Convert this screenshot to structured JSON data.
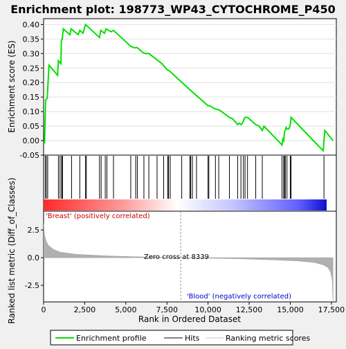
{
  "chart_data": {
    "type": "line",
    "title": "Enrichment plot: 198773_WP43_CYTOCHROME_P450",
    "top_panel": {
      "ylabel": "Enrichment score (ES)",
      "ylim": [
        -0.05,
        0.42
      ],
      "yticks": [
        "-0.05",
        "0.00",
        "0.05",
        "0.10",
        "0.15",
        "0.20",
        "0.25",
        "0.30",
        "0.35",
        "0.40"
      ],
      "ytick_values": [
        -0.05,
        0.0,
        0.05,
        0.1,
        0.15,
        0.2,
        0.25,
        0.3,
        0.35,
        0.4
      ],
      "series_color": "#00e000",
      "es_profile": [
        [
          0,
          0.0
        ],
        [
          60,
          -0.005
        ],
        [
          120,
          0.14
        ],
        [
          220,
          0.145
        ],
        [
          330,
          0.26
        ],
        [
          850,
          0.225
        ],
        [
          900,
          0.275
        ],
        [
          1050,
          0.265
        ],
        [
          1080,
          0.345
        ],
        [
          1130,
          0.35
        ],
        [
          1200,
          0.385
        ],
        [
          1600,
          0.365
        ],
        [
          1680,
          0.385
        ],
        [
          2100,
          0.365
        ],
        [
          2200,
          0.38
        ],
        [
          2400,
          0.37
        ],
        [
          2550,
          0.4
        ],
        [
          3400,
          0.355
        ],
        [
          3480,
          0.38
        ],
        [
          3700,
          0.37
        ],
        [
          3800,
          0.385
        ],
        [
          4100,
          0.375
        ],
        [
          4250,
          0.38
        ],
        [
          5300,
          0.325
        ],
        [
          5500,
          0.32
        ],
        [
          5550,
          0.32
        ],
        [
          5700,
          0.32
        ],
        [
          6000,
          0.305
        ],
        [
          6150,
          0.3
        ],
        [
          6300,
          0.3
        ],
        [
          6400,
          0.3
        ],
        [
          7200,
          0.265
        ],
        [
          7500,
          0.245
        ],
        [
          7650,
          0.24
        ],
        [
          8900,
          0.175
        ],
        [
          9000,
          0.17
        ],
        [
          9100,
          0.165
        ],
        [
          10000,
          0.12
        ],
        [
          10100,
          0.12
        ],
        [
          10400,
          0.11
        ],
        [
          10700,
          0.105
        ],
        [
          11300,
          0.08
        ],
        [
          11500,
          0.075
        ],
        [
          11800,
          0.055
        ],
        [
          11900,
          0.06
        ],
        [
          12000,
          0.055
        ],
        [
          12100,
          0.06
        ],
        [
          12200,
          0.075
        ],
        [
          12250,
          0.08
        ],
        [
          12400,
          0.08
        ],
        [
          12900,
          0.055
        ],
        [
          13100,
          0.05
        ],
        [
          13300,
          0.035
        ],
        [
          13400,
          0.05
        ],
        [
          14500,
          -0.015
        ],
        [
          14550,
          0.005
        ],
        [
          14600,
          0.0
        ],
        [
          14650,
          0.03
        ],
        [
          14700,
          0.035
        ],
        [
          14750,
          0.045
        ],
        [
          14800,
          0.04
        ],
        [
          14900,
          0.04
        ],
        [
          14950,
          0.045
        ],
        [
          15000,
          0.055
        ],
        [
          15050,
          0.08
        ],
        [
          17000,
          -0.035
        ],
        [
          17100,
          0.035
        ],
        [
          17600,
          0.0
        ]
      ]
    },
    "hits": [
      100,
      170,
      250,
      900,
      1000,
      1100,
      1120,
      1150,
      1700,
      2200,
      2550,
      2600,
      3400,
      3500,
      3750,
      3850,
      4250,
      5300,
      5600,
      5700,
      6100,
      6400,
      6900,
      7300,
      7550,
      7600,
      7700,
      8400,
      8900,
      8950,
      9050,
      9300,
      10000,
      10050,
      10450,
      10650,
      11300,
      11800,
      12000,
      12150,
      12250,
      12400,
      12900,
      13300,
      14500,
      14600,
      14650,
      14700,
      14800,
      15000,
      15050,
      17050
    ],
    "ranked_panel": {
      "ylabel": "Ranked list metric (Diff_of_Classes)",
      "ylim": [
        -4.0,
        4.2
      ],
      "yticks": [
        "-2.5",
        "0.0",
        "2.5"
      ],
      "ytick_values": [
        -2.5,
        0.0,
        2.5
      ],
      "zero_cross_label": "Zero cross at 8339",
      "zero_cross": 8339,
      "positive_label": "'Breast' (positively correlated)",
      "negative_label": "'Blood' (negatively correlated)",
      "metric_profile": [
        [
          0,
          3.1
        ],
        [
          50,
          2.1
        ],
        [
          150,
          1.5
        ],
        [
          300,
          1.1
        ],
        [
          600,
          0.75
        ],
        [
          1000,
          0.5
        ],
        [
          2000,
          0.3
        ],
        [
          4000,
          0.15
        ],
        [
          6000,
          0.07
        ],
        [
          8339,
          0.0
        ],
        [
          10000,
          -0.05
        ],
        [
          12000,
          -0.1
        ],
        [
          14000,
          -0.2
        ],
        [
          15500,
          -0.3
        ],
        [
          16500,
          -0.45
        ],
        [
          17000,
          -0.65
        ],
        [
          17300,
          -0.9
        ],
        [
          17450,
          -1.3
        ],
        [
          17550,
          -2.0
        ],
        [
          17600,
          -4.0
        ]
      ]
    },
    "xlabel": "Rank in Ordered Dataset",
    "xlim": [
      0,
      17800
    ],
    "xticks": [
      "0",
      "2,500",
      "5,000",
      "7,500",
      "10,000",
      "12,500",
      "15,000",
      "17,500"
    ],
    "xtick_values": [
      0,
      2500,
      5000,
      7500,
      10000,
      12500,
      15000,
      17500
    ],
    "legend": {
      "position": "bottom",
      "entries": [
        {
          "label": "Enrichment profile",
          "color": "#00e000"
        },
        {
          "label": "Hits",
          "color": "#000000"
        },
        {
          "label": "Ranking metric scores",
          "color": "#c0c0c0"
        }
      ]
    },
    "colors": {
      "positive_text": "#cc0000",
      "negative_text": "#0000cc",
      "metric_fill": "#b0b0b0",
      "bar_positive": "#ff0000",
      "bar_negative": "#0000ff"
    }
  }
}
